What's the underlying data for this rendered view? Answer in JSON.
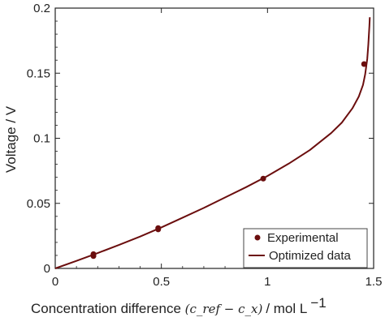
{
  "chart_data": {
    "type": "scatter",
    "xlabel": "Concentration difference (c_ref − c_x) / mol L⁻¹",
    "xlabel_parts": {
      "prefix": "Concentration difference ",
      "math": "(c_ref − c_x)",
      "units": " / mol L",
      "superscript": "−1"
    },
    "ylabel": "Voltage / V",
    "xlim": [
      0,
      1.5
    ],
    "ylim": [
      0,
      0.2
    ],
    "x_ticks": [
      {
        "value": 0,
        "label": "0"
      },
      {
        "value": 0.5,
        "label": "0.5"
      },
      {
        "value": 1,
        "label": "1"
      },
      {
        "value": 1.5,
        "label": "1.5"
      }
    ],
    "y_ticks": [
      {
        "value": 0,
        "label": "0"
      },
      {
        "value": 0.05,
        "label": "0.05"
      },
      {
        "value": 0.1,
        "label": "0.1"
      },
      {
        "value": 0.15,
        "label": "0.15"
      },
      {
        "value": 0.2,
        "label": "0.2"
      }
    ],
    "grid": false,
    "legend_position": "bottom-right",
    "colors": {
      "series": "#6b0e0e",
      "axis": "#222222"
    },
    "series": [
      {
        "name": "Experimental",
        "kind": "points",
        "points": [
          {
            "x": 0.18,
            "y": 0.0095
          },
          {
            "x": 0.18,
            "y": 0.011
          },
          {
            "x": 0.485,
            "y": 0.03
          },
          {
            "x": 0.485,
            "y": 0.031
          },
          {
            "x": 0.98,
            "y": 0.069
          },
          {
            "x": 1.455,
            "y": 0.157
          }
        ]
      },
      {
        "name": "Optimized data",
        "kind": "line",
        "points": [
          {
            "x": 0,
            "y": 0
          },
          {
            "x": 0.1,
            "y": 0.0058
          },
          {
            "x": 0.2,
            "y": 0.0118
          },
          {
            "x": 0.3,
            "y": 0.018
          },
          {
            "x": 0.4,
            "y": 0.0245
          },
          {
            "x": 0.5,
            "y": 0.0315
          },
          {
            "x": 0.6,
            "y": 0.039
          },
          {
            "x": 0.7,
            "y": 0.0465
          },
          {
            "x": 0.8,
            "y": 0.0545
          },
          {
            "x": 0.9,
            "y": 0.0625
          },
          {
            "x": 1.0,
            "y": 0.071
          },
          {
            "x": 1.1,
            "y": 0.0805
          },
          {
            "x": 1.2,
            "y": 0.091
          },
          {
            "x": 1.3,
            "y": 0.104
          },
          {
            "x": 1.35,
            "y": 0.112
          },
          {
            "x": 1.4,
            "y": 0.123
          },
          {
            "x": 1.43,
            "y": 0.132
          },
          {
            "x": 1.45,
            "y": 0.141
          },
          {
            "x": 1.46,
            "y": 0.149
          },
          {
            "x": 1.47,
            "y": 0.161
          },
          {
            "x": 1.475,
            "y": 0.172
          },
          {
            "x": 1.48,
            "y": 0.186
          },
          {
            "x": 1.482,
            "y": 0.193
          }
        ]
      }
    ]
  }
}
